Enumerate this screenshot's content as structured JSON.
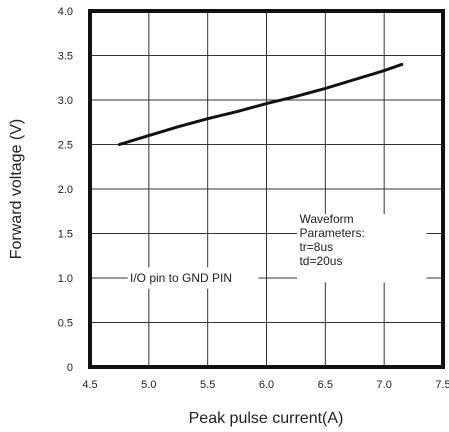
{
  "chart_data": {
    "type": "line",
    "xlabel": "Peak pulse current(A)",
    "ylabel": "Forward voltage (V)",
    "xlim": [
      4.5,
      7.5
    ],
    "ylim": [
      0,
      4.0
    ],
    "x_ticks": [
      "4.5",
      "5.0",
      "5.5",
      "6.0",
      "6.5",
      "7.0",
      "7.5"
    ],
    "y_ticks": [
      "0",
      "0.5",
      "1.0",
      "1.5",
      "2.0",
      "2.5",
      "3.0",
      "3.5",
      "4.0"
    ],
    "grid": true,
    "series": [
      {
        "x": [
          4.75,
          5.0,
          5.25,
          5.5,
          5.75,
          6.0,
          6.25,
          6.5,
          6.75,
          7.0,
          7.15
        ],
        "y": [
          2.5,
          2.6,
          2.7,
          2.79,
          2.87,
          2.96,
          3.04,
          3.13,
          3.23,
          3.33,
          3.4
        ]
      }
    ],
    "annotations": {
      "pin_label": "I/O pin to GND PIN",
      "waveform_lines": [
        "Waveform",
        "Parameters:",
        "tr=8us",
        "td=20us"
      ]
    }
  }
}
